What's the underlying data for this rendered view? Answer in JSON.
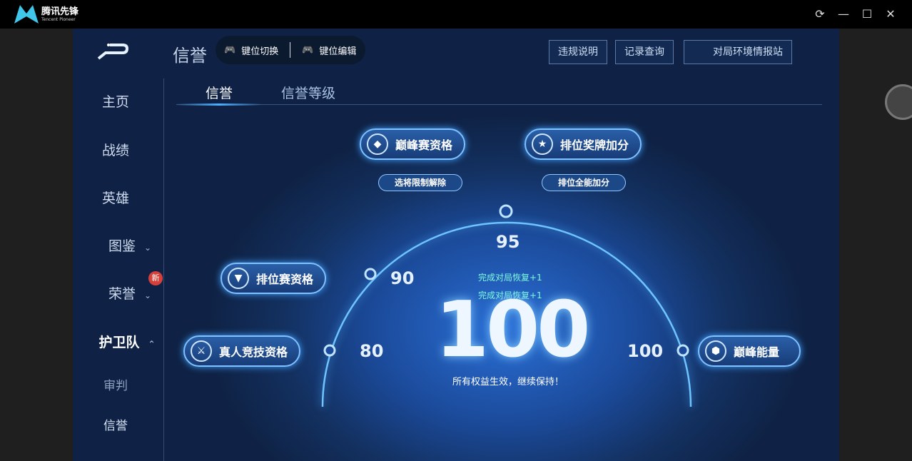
{
  "app": {
    "name": "腾讯先锋",
    "name_en": "Tencent Pioneer"
  },
  "window": {
    "refresh": "⟳",
    "minimize": "—",
    "maximize": "☐",
    "close": "✕"
  },
  "sidebar": {
    "items": [
      {
        "label": "主页"
      },
      {
        "label": "战绩"
      },
      {
        "label": "英雄"
      },
      {
        "label": "图鉴",
        "chev": "⌄"
      },
      {
        "label": "荣誉",
        "chev": "⌄",
        "badge": "新"
      },
      {
        "label": "护卫队",
        "chev": "⌃"
      },
      {
        "label": "审判"
      },
      {
        "label": "信誉"
      }
    ]
  },
  "header": {
    "title": "信誉",
    "key_switch": "键位切换",
    "key_edit": "键位编辑",
    "buttons": [
      "违规说明",
      "记录查询",
      "对局环境情报站"
    ]
  },
  "tabs": [
    {
      "label": "信誉",
      "active": true
    },
    {
      "label": "信誉等级",
      "active": false
    }
  ],
  "privileges": {
    "peak": "巅峰赛资格",
    "peak_sub": "选将限制解除",
    "medal": "排位奖牌加分",
    "medal_sub": "排位全能加分",
    "ranked": "排位赛资格",
    "human": "真人竞技资格",
    "energy": "巅峰能量"
  },
  "thresholds": [
    "80",
    "90",
    "95",
    "100"
  ],
  "score": {
    "value": "100",
    "recover1": "完成对局恢复+1",
    "recover2": "完成对局恢复+1",
    "status": "所有权益生效，继续保持！",
    "fraction": 1.0
  },
  "colors": {
    "accent": "#4cb0ff",
    "recover": "#7dfce0",
    "badge": "#d6403a"
  }
}
